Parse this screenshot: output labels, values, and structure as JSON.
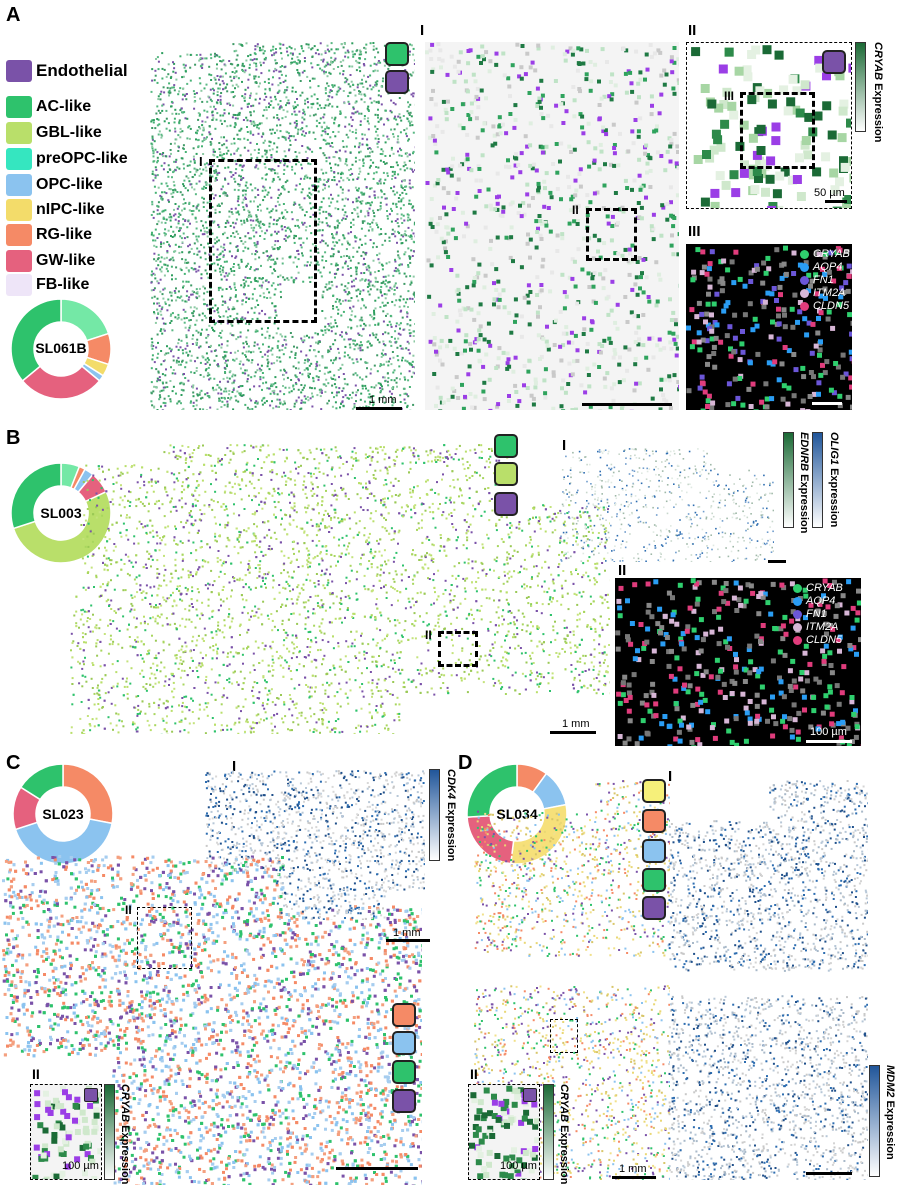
{
  "panels": {
    "A": "A",
    "B": "B",
    "C": "C",
    "D": "D"
  },
  "sub": {
    "I": "I",
    "II": "II",
    "III": "III"
  },
  "legend": [
    {
      "label": "Endothelial",
      "color": "#7a52a8"
    },
    {
      "label": "AC-like",
      "color": "#2ec26c"
    },
    {
      "label": "GBL-like",
      "color": "#b9df6a"
    },
    {
      "label": "preOPC-like",
      "color": "#35e6c0"
    },
    {
      "label": "OPC-like",
      "color": "#8bc3ef"
    },
    {
      "label": "nIPC-like",
      "color": "#f3dc6a"
    },
    {
      "label": "RG-like",
      "color": "#f58a66"
    },
    {
      "label": "GW-like",
      "color": "#e5617e"
    },
    {
      "label": "FB-like",
      "color": "#eee5f8"
    }
  ],
  "samples": {
    "a": "SL061B",
    "b": "SL003",
    "c": "SL023",
    "d": "SL034"
  },
  "scales": {
    "mm": "1 mm",
    "um50": "50 µm",
    "um100": "100 µm"
  },
  "genes": [
    "CRYAB",
    "AQP4",
    "FN1",
    "ITM2A",
    "CLDN5"
  ],
  "gene_colors": [
    "#2fcf6e",
    "#2a9df4",
    "#6b56d8",
    "#d7b6d6",
    "#e03c7c"
  ],
  "colorbars": {
    "cryab_gene": "CRYAB",
    "cryab_rest": " Expression",
    "ednrb_gene": "EDNRB",
    "ednrb_rest": " Expression",
    "olig1_gene": "OLIG1",
    "olig1_rest": " Expression",
    "cdk4_gene": "CDK4",
    "cdk4_rest": " Expression",
    "mdm2_gene": "MDM2",
    "mdm2_rest": " Expression"
  },
  "colors": {
    "green": "#2ec26c",
    "lime": "#b9df6a",
    "purple": "#7a52a8",
    "orange": "#f58a66",
    "blue": "#8bc3ef",
    "yellow": "#f6f07a"
  }
}
